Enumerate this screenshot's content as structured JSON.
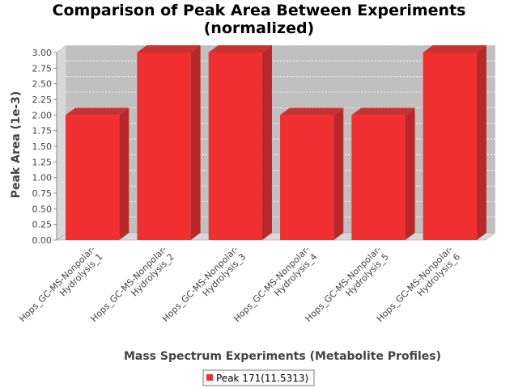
{
  "chart_data": {
    "type": "bar",
    "title_lines": [
      "Comparison of Peak Area Between Experiments",
      "(normalized)"
    ],
    "xlabel": "Mass Spectrum Experiments (Metabolite Profiles)",
    "ylabel": "Peak Area (1e-3)",
    "ylim": [
      0,
      3.0
    ],
    "y_ticks": [
      "0.00",
      "0.25",
      "0.50",
      "0.75",
      "1.00",
      "1.25",
      "1.50",
      "1.75",
      "2.00",
      "2.25",
      "2.50",
      "2.75",
      "3.00"
    ],
    "categories": [
      [
        "Hops_GC-MS-Nonpolar-",
        "Hydrolysis_1"
      ],
      [
        "Hops_GC-MS-Nonpolar-",
        "Hydrolysis_2"
      ],
      [
        "Hops_GC-MS-Nonpolar-",
        "Hydrolysis_3"
      ],
      [
        "Hops_GC-MS-Nonpolar-",
        "Hydrolysis_4"
      ],
      [
        "Hops_GC-MS-Nonpolar-",
        "Hydrolysis_5"
      ],
      [
        "Hops_GC-MS-Nonpolar-",
        "Hydrolysis_6"
      ]
    ],
    "series": [
      {
        "name": "Peak 171(11.5313)",
        "values": [
          2.0,
          3.0,
          3.0,
          2.0,
          2.0,
          3.0
        ]
      }
    ],
    "grid": true,
    "legend_position": "bottom",
    "colors": {
      "bar_front": "#f03030",
      "bar_side": "#b82828",
      "bar_top": "#c83232",
      "plot_background": "#c0c0c0",
      "plot_wall": "#d8d8d8"
    }
  }
}
